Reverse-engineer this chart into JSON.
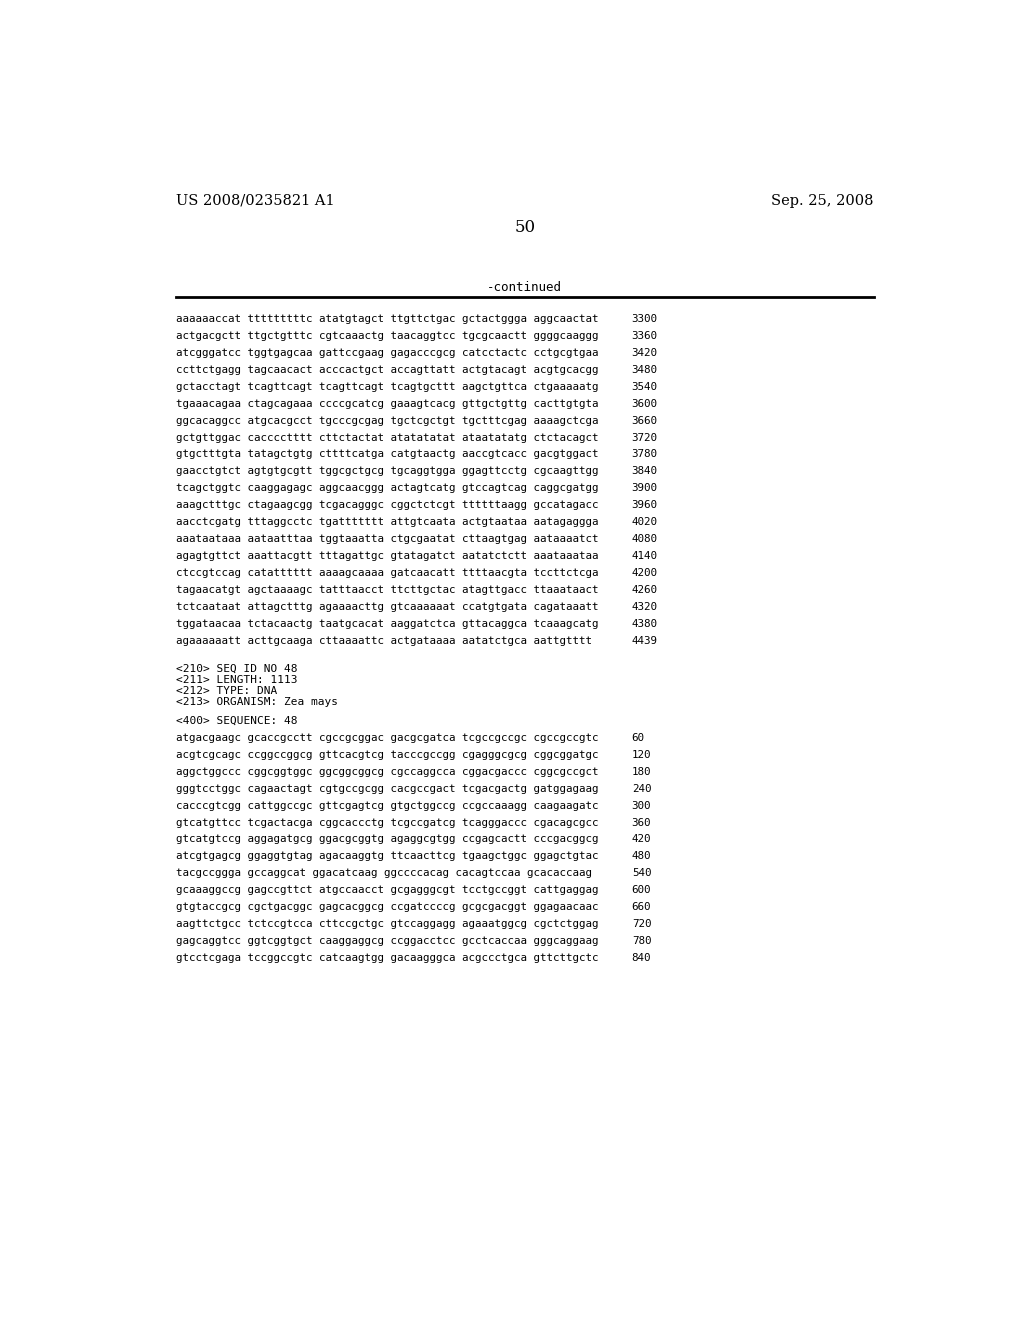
{
  "header_left": "US 2008/0235821 A1",
  "header_right": "Sep. 25, 2008",
  "page_number": "50",
  "continued_label": "-continued",
  "background_color": "#ffffff",
  "text_color": "#000000",
  "sequence_lines_top": [
    [
      "aaaaaaccat",
      "tttttttttc",
      "atatgtagct",
      "ttgttctgac",
      "gctactggga",
      "aggcaactat",
      "3300"
    ],
    [
      "actgacgctt",
      "ttgctgtttc",
      "cgtcaaactg",
      "taacaggtcc",
      "tgcgcaactt",
      "ggggcaaggg",
      "3360"
    ],
    [
      "atcgggatcc",
      "tggtgagcaa",
      "gattccgaag",
      "gagacccgcg",
      "catcctactc",
      "cctgcgtgaa",
      "3420"
    ],
    [
      "ccttctgagg",
      "tagcaacact",
      "acccactgct",
      "accagttatt",
      "actgtacagt",
      "acgtgcacgg",
      "3480"
    ],
    [
      "gctacctagt",
      "tcagttcagt",
      "tcagttcagt",
      "tcagtgcttt",
      "aagctgttca",
      "ctgaaaaatg",
      "3540"
    ],
    [
      "tgaaacagaa",
      "ctagcagaaa",
      "ccccgcatcg",
      "gaaagtcacg",
      "gttgctgttg",
      "cacttgtgta",
      "3600"
    ],
    [
      "ggcacaggcc",
      "atgcacgcct",
      "tgcccgcgag",
      "tgctcgctgt",
      "tgctttcgag",
      "aaaagctcga",
      "3660"
    ],
    [
      "gctgttggac",
      "cacccctttt",
      "cttctactat",
      "atatatatat",
      "ataatatatg",
      "ctctacagct",
      "3720"
    ],
    [
      "gtgctttgta",
      "tatagctgtg",
      "cttttcatga",
      "catgtaactg",
      "aaccgtcacc",
      "gacgtggact",
      "3780"
    ],
    [
      "gaacctgtct",
      "agtgtgcgtt",
      "tggcgctgcg",
      "tgcaggtgga",
      "ggagttcctg",
      "cgcaagttgg",
      "3840"
    ],
    [
      "tcagctggtc",
      "caaggagagc",
      "aggcaacggg",
      "actagtcatg",
      "gtccagtcag",
      "caggcgatgg",
      "3900"
    ],
    [
      "aaagctttgc",
      "ctagaagcgg",
      "tcgacagggc",
      "cggctctcgt",
      "ttttttaagg",
      "gccatagacc",
      "3960"
    ],
    [
      "aacctcgatg",
      "tttaggcctc",
      "tgattttttt",
      "attgtcaata",
      "actgtaataa",
      "aatagaggga",
      "4020"
    ],
    [
      "aaataataaa",
      "aataatttaa",
      "tggtaaatta",
      "ctgcgaatat",
      "cttaagtgag",
      "aataaaatct",
      "4080"
    ],
    [
      "agagtgttct",
      "aaattacgtt",
      "tttagattgc",
      "gtatagatct",
      "aatatctctt",
      "aaataaataa",
      "4140"
    ],
    [
      "ctccgtccag",
      "catatttttt",
      "aaaagcaaaa",
      "gatcaacatt",
      "ttttaacgta",
      "tccttctcga",
      "4200"
    ],
    [
      "tagaacatgt",
      "agctaaaagc",
      "tatttaacct",
      "ttcttgctac",
      "atagttgacc",
      "ttaaataact",
      "4260"
    ],
    [
      "tctcaataat",
      "attagctttg",
      "agaaaacttg",
      "gtcaaaaaat",
      "ccatgtgata",
      "cagataaatt",
      "4320"
    ],
    [
      "tggataacaa",
      "tctacaactg",
      "taatgcacat",
      "aaggatctca",
      "gttacaggca",
      "tcaaagcatg",
      "4380"
    ],
    [
      "agaaaaaatt",
      "acttgcaaga",
      "cttaaaattc",
      "actgataaaa",
      "aatatctgca",
      "aattgtttt",
      "4439"
    ]
  ],
  "metadata_lines": [
    "<210> SEQ ID NO 48",
    "<211> LENGTH: 1113",
    "<212> TYPE: DNA",
    "<213> ORGANISM: Zea mays"
  ],
  "sequence_label": "<400> SEQUENCE: 48",
  "sequence_lines_bottom": [
    [
      "atgacgaagc",
      "gcaccgcctt",
      "cgccgcggac",
      "gacgcgatca",
      "tcgccgccgc",
      "cgccgccgtc",
      "60"
    ],
    [
      "acgtcgcagc",
      "ccggccggcg",
      "gttcacgtcg",
      "tacccgccgg",
      "cgagggcgcg",
      "cggcggatgc",
      "120"
    ],
    [
      "aggctggccc",
      "cggcggtggc",
      "ggcggcggcg",
      "cgccaggcca",
      "cggacgaccc",
      "cggcgccgct",
      "180"
    ],
    [
      "gggtcctggc",
      "cagaactagt",
      "cgtgccgcgg",
      "cacgccgact",
      "tcgacgactg",
      "gatggagaag",
      "240"
    ],
    [
      "cacccgtcgg",
      "cattggccgc",
      "gttcgagtcg",
      "gtgctggccg",
      "ccgccaaagg",
      "caagaagatc",
      "300"
    ],
    [
      "gtcatgttcc",
      "tcgactacga",
      "cggcaccctg",
      "tcgccgatcg",
      "tcagggaccc",
      "cgacagcgcc",
      "360"
    ],
    [
      "gtcatgtccg",
      "aggagatgcg",
      "ggacgcggtg",
      "agaggcgtgg",
      "ccgagcactt",
      "cccgacggcg",
      "420"
    ],
    [
      "atcgtgagcg",
      "ggaggtgtag",
      "agacaaggtg",
      "ttcaacttcg",
      "tgaagctggc",
      "ggagctgtac",
      "480"
    ],
    [
      "tacgccggga",
      "gccaggcat",
      "ggacatcaag",
      "ggccccacag",
      "cacagtccaa",
      "gcacaccaag",
      "540"
    ],
    [
      "gcaaaggccg",
      "gagccgttct",
      "atgccaacct",
      "gcgagggcgt",
      "tcctgccggt",
      "cattgaggag",
      "600"
    ],
    [
      "gtgtaccgcg",
      "cgctgacggc",
      "gagcacggcg",
      "ccgatccccg",
      "gcgcgacggt",
      "ggagaacaac",
      "660"
    ],
    [
      "aagttctgcc",
      "tctccgtcca",
      "cttccgctgc",
      "gtccaggagg",
      "agaaatggcg",
      "cgctctggag",
      "720"
    ],
    [
      "gagcaggtcc",
      "ggtcggtgct",
      "caaggaggcg",
      "ccggacctcc",
      "gcctcaccaa",
      "gggcaggaag",
      "780"
    ],
    [
      "gtcctcgaga",
      "tccggccgtc",
      "catcaagtgg",
      "gacaagggca",
      "acgccctgca",
      "gttcttgctc",
      "840"
    ]
  ]
}
